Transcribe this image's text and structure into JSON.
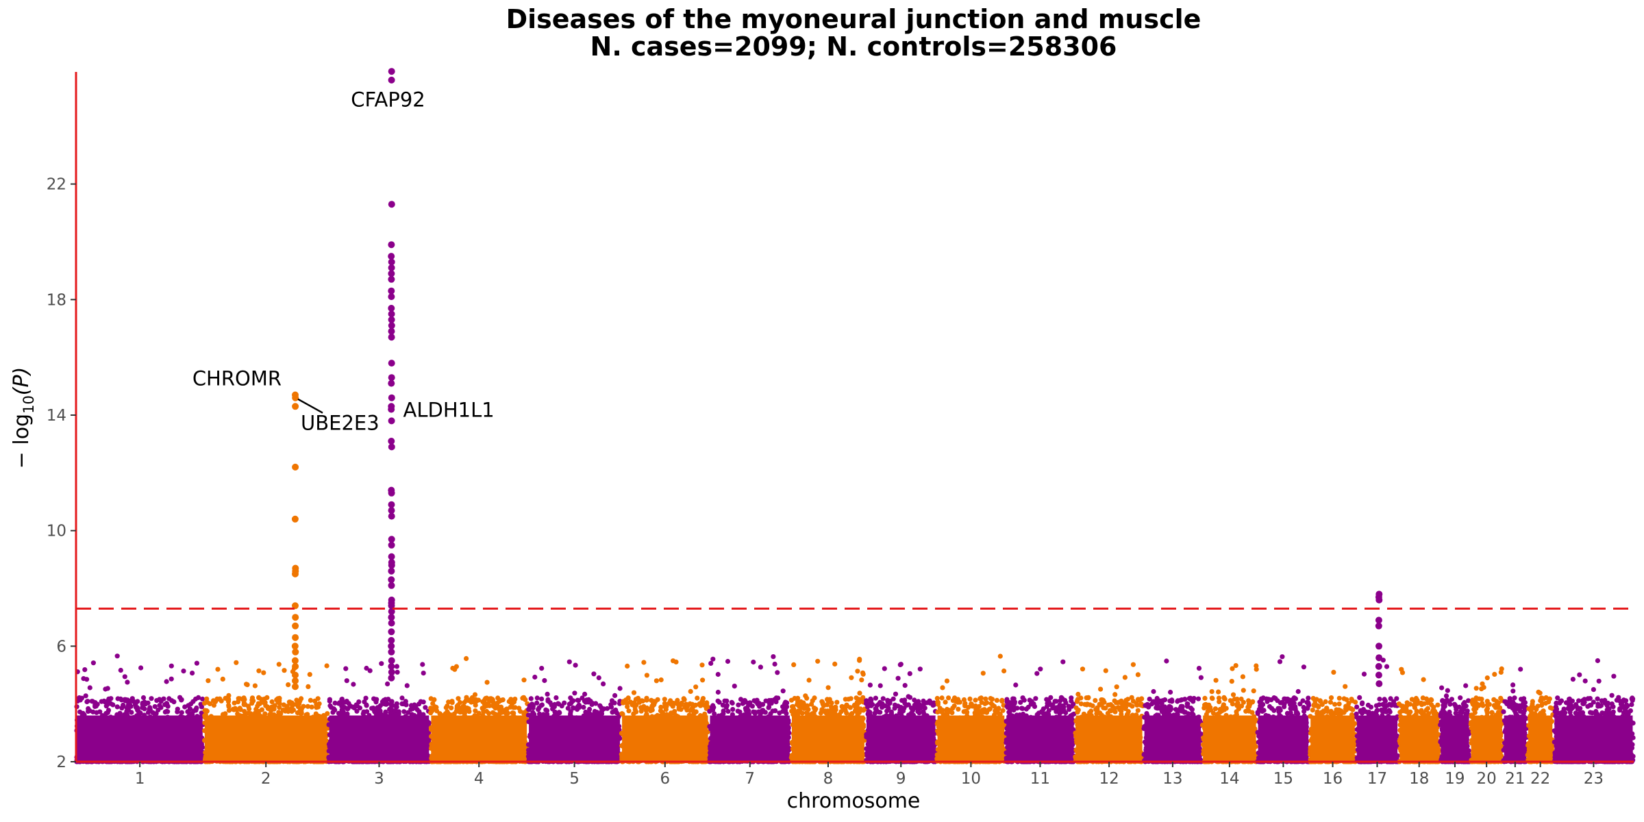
{
  "chart_data": {
    "type": "scatter",
    "title": "Diseases of the myoneural junction and muscle",
    "subtitle": "N. cases=2099; N. controls=258306",
    "xlabel": "chromosome",
    "ylabel_prefix": "− log",
    "ylabel_sub": "10",
    "ylabel_suffix": "(P)",
    "ylim": [
      2,
      26
    ],
    "yticks": [
      2,
      6,
      10,
      14,
      18,
      22
    ],
    "significance_threshold": 7.3,
    "threshold_color": "#e41a1c",
    "axis_color": "#e41a1c",
    "colors": {
      "odd": "#8b008b",
      "even": "#ef7500"
    },
    "chromosomes": [
      "1",
      "2",
      "3",
      "4",
      "5",
      "6",
      "7",
      "8",
      "9",
      "10",
      "11",
      "12",
      "13",
      "14",
      "15",
      "16",
      "17",
      "18",
      "19",
      "20",
      "21",
      "22",
      "23"
    ],
    "chromosome_lengths_mb": [
      248,
      242,
      198,
      190,
      181,
      171,
      159,
      145,
      138,
      134,
      135,
      133,
      114,
      107,
      102,
      90,
      83,
      80,
      59,
      64,
      47,
      51,
      156
    ],
    "peaks": [
      {
        "chr": "2",
        "pos_mb": 178,
        "neglog10p": [
          14.7,
          14.6,
          14.3,
          12.2,
          10.4,
          8.7,
          8.6,
          8.5,
          7.4,
          7.0,
          6.7,
          6.3,
          6.0,
          5.8,
          5.5,
          5.3,
          5.0,
          4.8,
          4.6
        ]
      },
      {
        "chr": "3",
        "pos_mb": 123,
        "neglog10p": [
          25.9,
          25.6,
          21.3,
          19.9,
          19.5,
          19.3,
          19.1,
          18.9,
          18.7,
          18.3,
          18.1,
          17.7,
          17.5,
          17.3,
          17.1,
          16.9,
          16.7,
          15.8,
          15.3,
          15.1,
          14.6,
          14.3,
          14.2,
          13.8,
          13.1,
          12.9,
          11.4,
          11.3,
          10.9,
          10.7,
          10.5,
          9.7,
          9.5,
          9.1,
          8.9,
          8.8,
          8.6,
          8.3,
          8.1,
          7.6,
          7.5,
          7.4,
          7.2,
          7.0,
          6.8,
          6.5,
          6.2,
          6.0,
          5.8,
          5.5,
          5.3,
          5.1,
          4.9
        ]
      },
      {
        "chr": "17",
        "pos_mb": 45,
        "neglog10p": [
          7.8,
          7.7,
          7.6,
          6.9,
          6.7,
          6.0,
          5.6,
          5.3,
          5.0,
          4.7
        ]
      }
    ],
    "annotations": [
      {
        "label": "CFAP92",
        "chr": "3",
        "pos_mb": 123,
        "y": 25.8
      },
      {
        "label": "CHROMR",
        "chr": "2",
        "pos_mb": 178,
        "y": 14.7
      },
      {
        "label": "UBE2E3",
        "chr": "2",
        "pos_mb": 178,
        "y": 14.6
      },
      {
        "label": "ALDH1L1",
        "chr": "3",
        "pos_mb": 123,
        "y": 14.3
      }
    ]
  }
}
